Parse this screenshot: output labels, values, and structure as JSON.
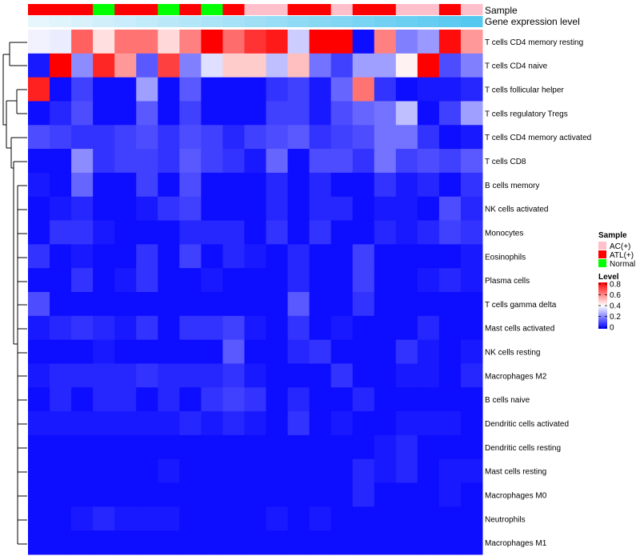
{
  "chart_data": {
    "type": "heatmap",
    "annotation_labels": [
      "Sample",
      "Gene expression level"
    ],
    "sample_annotation": [
      "ATL(+)",
      "ATL(+)",
      "ATL(+)",
      "Normal",
      "ATL(+)",
      "ATL(+)",
      "Normal",
      "ATL(+)",
      "Normal",
      "ATL(+)",
      "AC(+)",
      "AC(+)",
      "ATL(+)",
      "ATL(+)",
      "AC(+)",
      "ATL(+)",
      "ATL(+)",
      "AC(+)",
      "AC(+)",
      "ATL(+)",
      "AC(+)"
    ],
    "expression_annotation": [
      0.02,
      0.06,
      0.1,
      0.14,
      0.18,
      0.22,
      0.26,
      0.3,
      0.34,
      0.38,
      0.42,
      0.46,
      0.5,
      0.54,
      0.58,
      0.62,
      0.66,
      0.7,
      0.74,
      0.78,
      0.82
    ],
    "rows": [
      "T cells CD4 memory resting",
      "T cells CD4 naive",
      "T cells follicular helper",
      "T cells regulatory  Tregs",
      "T cells CD4 memory activated",
      "T cells CD8",
      "B cells memory",
      "NK cells activated",
      "Monocytes",
      "Eosinophils",
      "Plasma cells",
      "T cells gamma delta",
      "Mast cells activated",
      "NK cells resting",
      "Macrophages M2",
      "B cells naive",
      "Dendritic cells activated",
      "Dendritic cells resting",
      "Mast cells resting",
      "Macrophages M0",
      "Neutrophils",
      "Macrophages M1"
    ],
    "values": [
      [
        0.38,
        0.37,
        0.65,
        0.45,
        0.62,
        0.62,
        0.46,
        0.6,
        0.8,
        0.63,
        0.72,
        0.76,
        0.32,
        0.8,
        0.8,
        0.02,
        0.6,
        0.2,
        0.24,
        0.78,
        0.56
      ],
      [
        0.04,
        0.8,
        0.22,
        0.74,
        0.56,
        0.14,
        0.7,
        0.2,
        0.35,
        0.48,
        0.48,
        0.3,
        0.5,
        0.18,
        0.1,
        0.25,
        0.25,
        0.42,
        0.8,
        0.12,
        0.2
      ],
      [
        0.75,
        0.02,
        0.1,
        0.02,
        0.02,
        0.25,
        0.02,
        0.14,
        0.02,
        0.02,
        0.02,
        0.08,
        0.1,
        0.04,
        0.16,
        0.62,
        0.08,
        0.02,
        0.04,
        0.04,
        0.06
      ],
      [
        0.02,
        0.06,
        0.12,
        0.02,
        0.02,
        0.14,
        0.02,
        0.1,
        0.02,
        0.02,
        0.02,
        0.1,
        0.1,
        0.04,
        0.12,
        0.16,
        0.18,
        0.3,
        0.02,
        0.1,
        0.25
      ],
      [
        0.12,
        0.1,
        0.08,
        0.08,
        0.1,
        0.12,
        0.08,
        0.12,
        0.1,
        0.06,
        0.1,
        0.12,
        0.14,
        0.08,
        0.1,
        0.12,
        0.18,
        0.18,
        0.08,
        0.02,
        0.04
      ],
      [
        0.02,
        0.02,
        0.22,
        0.08,
        0.1,
        0.1,
        0.08,
        0.14,
        0.1,
        0.08,
        0.04,
        0.16,
        0.02,
        0.12,
        0.12,
        0.08,
        0.18,
        0.1,
        0.12,
        0.1,
        0.14
      ],
      [
        0.04,
        0.02,
        0.16,
        0.02,
        0.02,
        0.1,
        0.02,
        0.12,
        0.02,
        0.02,
        0.02,
        0.06,
        0.02,
        0.06,
        0.02,
        0.02,
        0.08,
        0.04,
        0.06,
        0.02,
        0.08
      ],
      [
        0.02,
        0.04,
        0.06,
        0.02,
        0.02,
        0.04,
        0.08,
        0.1,
        0.02,
        0.02,
        0.02,
        0.06,
        0.02,
        0.06,
        0.06,
        0.02,
        0.04,
        0.04,
        0.02,
        0.12,
        0.06
      ],
      [
        0.02,
        0.08,
        0.08,
        0.04,
        0.02,
        0.02,
        0.02,
        0.06,
        0.06,
        0.06,
        0.02,
        0.08,
        0.02,
        0.08,
        0.02,
        0.02,
        0.06,
        0.04,
        0.06,
        0.1,
        0.08
      ],
      [
        0.08,
        0.02,
        0.04,
        0.02,
        0.02,
        0.08,
        0.02,
        0.1,
        0.02,
        0.06,
        0.04,
        0.02,
        0.06,
        0.02,
        0.02,
        0.1,
        0.02,
        0.02,
        0.02,
        0.02,
        0.04
      ],
      [
        0.02,
        0.02,
        0.08,
        0.02,
        0.04,
        0.08,
        0.02,
        0.02,
        0.04,
        0.02,
        0.02,
        0.02,
        0.06,
        0.02,
        0.02,
        0.1,
        0.02,
        0.02,
        0.04,
        0.06,
        0.04
      ],
      [
        0.12,
        0.02,
        0.02,
        0.02,
        0.02,
        0.02,
        0.02,
        0.02,
        0.02,
        0.02,
        0.02,
        0.02,
        0.14,
        0.02,
        0.02,
        0.08,
        0.02,
        0.02,
        0.02,
        0.02,
        0.02
      ],
      [
        0.04,
        0.06,
        0.08,
        0.06,
        0.04,
        0.08,
        0.02,
        0.08,
        0.08,
        0.1,
        0.04,
        0.02,
        0.08,
        0.02,
        0.04,
        0.02,
        0.02,
        0.02,
        0.06,
        0.02,
        0.02
      ],
      [
        0.02,
        0.02,
        0.02,
        0.04,
        0.02,
        0.02,
        0.02,
        0.02,
        0.02,
        0.14,
        0.02,
        0.02,
        0.06,
        0.08,
        0.02,
        0.02,
        0.02,
        0.08,
        0.04,
        0.02,
        0.04
      ],
      [
        0.04,
        0.06,
        0.06,
        0.06,
        0.06,
        0.08,
        0.06,
        0.06,
        0.06,
        0.08,
        0.04,
        0.02,
        0.02,
        0.02,
        0.08,
        0.02,
        0.02,
        0.04,
        0.04,
        0.02,
        0.06
      ],
      [
        0.02,
        0.06,
        0.02,
        0.06,
        0.06,
        0.02,
        0.06,
        0.02,
        0.08,
        0.1,
        0.08,
        0.02,
        0.06,
        0.02,
        0.02,
        0.06,
        0.02,
        0.02,
        0.02,
        0.02,
        0.02
      ],
      [
        0.04,
        0.04,
        0.04,
        0.04,
        0.04,
        0.04,
        0.04,
        0.06,
        0.04,
        0.06,
        0.04,
        0.02,
        0.08,
        0.02,
        0.04,
        0.02,
        0.02,
        0.04,
        0.04,
        0.04,
        0.02
      ],
      [
        0.02,
        0.02,
        0.02,
        0.02,
        0.02,
        0.02,
        0.02,
        0.02,
        0.02,
        0.02,
        0.02,
        0.02,
        0.02,
        0.02,
        0.02,
        0.02,
        0.04,
        0.06,
        0.02,
        0.02,
        0.02
      ],
      [
        0.02,
        0.02,
        0.02,
        0.02,
        0.02,
        0.02,
        0.04,
        0.02,
        0.02,
        0.02,
        0.02,
        0.02,
        0.02,
        0.02,
        0.02,
        0.06,
        0.04,
        0.06,
        0.02,
        0.04,
        0.04
      ],
      [
        0.02,
        0.02,
        0.02,
        0.02,
        0.02,
        0.02,
        0.02,
        0.02,
        0.02,
        0.02,
        0.02,
        0.02,
        0.02,
        0.02,
        0.02,
        0.06,
        0.02,
        0.02,
        0.02,
        0.04,
        0.02
      ],
      [
        0.02,
        0.02,
        0.04,
        0.06,
        0.04,
        0.04,
        0.04,
        0.02,
        0.02,
        0.02,
        0.02,
        0.04,
        0.02,
        0.04,
        0.02,
        0.02,
        0.02,
        0.02,
        0.02,
        0.02,
        0.02
      ],
      [
        0.02,
        0.02,
        0.02,
        0.02,
        0.02,
        0.02,
        0.02,
        0.02,
        0.02,
        0.02,
        0.02,
        0.02,
        0.02,
        0.02,
        0.02,
        0.02,
        0.02,
        0.02,
        0.02,
        0.02,
        0.02
      ]
    ],
    "legend": {
      "sample_title": "Sample",
      "sample_entries": [
        {
          "label": "AC(+)",
          "color": "#ffc0cb"
        },
        {
          "label": "ATL(+)",
          "color": "#ff0000"
        },
        {
          "label": "Normal",
          "color": "#00ff00"
        }
      ],
      "level_title": "Level",
      "level_ticks": [
        "0.8",
        "0.6",
        "0.4",
        "0.2",
        "0"
      ],
      "level_tick_values": [
        0.8,
        0.6,
        0.4,
        0.2,
        0
      ]
    },
    "color_scale": {
      "low": "#0000ff",
      "mid": "#ffffff",
      "high": "#ff0000",
      "min": 0,
      "mid_value": 0.4,
      "max": 0.8
    },
    "expression_scale": {
      "low": "#e6f6fc",
      "high": "#55c8f0"
    },
    "dendrogram": "row"
  }
}
